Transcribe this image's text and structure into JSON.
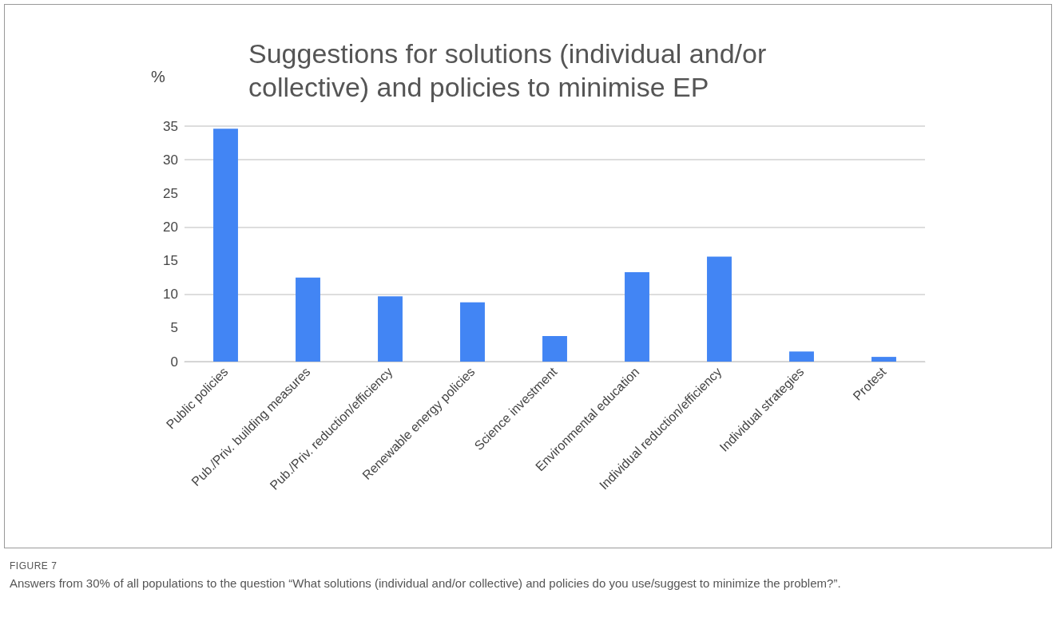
{
  "chart_data": {
    "type": "bar",
    "title": "Suggestions for solutions (individual and/or collective) and policies to minimise EP",
    "ylabel": "%",
    "categories": [
      "Public policies",
      "Pub./Priv. building measures",
      "Pub./Priv. reduction/efficiency",
      "Renewable energy policies",
      "Science investment",
      "Environmental education",
      "Individual reduction/efficiency",
      "Individual strategies",
      "Protest"
    ],
    "values": [
      34.6,
      12.5,
      9.7,
      8.8,
      3.8,
      13.3,
      15.6,
      1.5,
      0.7
    ],
    "color": "#4285f4",
    "ylim": [
      0,
      35
    ],
    "yticks": [
      0,
      5,
      10,
      15,
      20,
      25,
      30,
      35
    ],
    "grid": "y",
    "annotations": [
      "FIGURE 7",
      "Answers from 30% of all populations to the question “What solutions (individual and/or collective) and policies do you use/suggest to minimize the problem?”."
    ]
  }
}
